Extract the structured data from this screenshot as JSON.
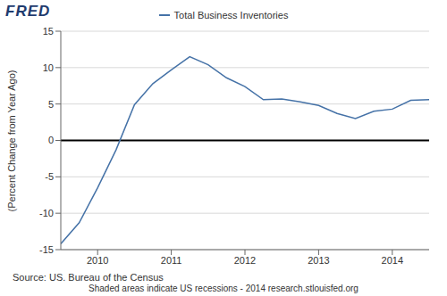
{
  "chart_data": {
    "type": "line",
    "title": "Total Business Inventories",
    "y_label": "(Percent Change from Year Ago)",
    "annotations": [
      "FRED",
      "Source: US. Bureau of the Census",
      "Shaded areas indicate US recessions - 2014 research.stlouisfed.org"
    ],
    "x": [
      2009.5,
      2009.75,
      2010,
      2010.25,
      2010.5,
      2010.75,
      2011,
      2011.25,
      2011.5,
      2011.75,
      2012,
      2012.25,
      2012.5,
      2012.75,
      2013,
      2013.25,
      2013.5,
      2013.75,
      2014,
      2014.25,
      2014.5
    ],
    "series": [
      {
        "name": "Total Business Inventories",
        "color": "#4572a7",
        "values": [
          -14.2,
          -11.3,
          -6.5,
          -1.3,
          4.9,
          7.8,
          9.7,
          11.5,
          10.4,
          8.6,
          7.4,
          5.6,
          5.7,
          5.3,
          4.8,
          3.7,
          3.0,
          4.0,
          4.3,
          5.5,
          5.6
        ]
      }
    ],
    "xlim": [
      2009.5,
      2014.5
    ],
    "xticks": [
      2010,
      2011,
      2012,
      2013,
      2014
    ],
    "ylim": [
      -15,
      15
    ],
    "yticks": [
      -15,
      -10,
      -5,
      0,
      5,
      10,
      15
    ],
    "grid": true
  }
}
